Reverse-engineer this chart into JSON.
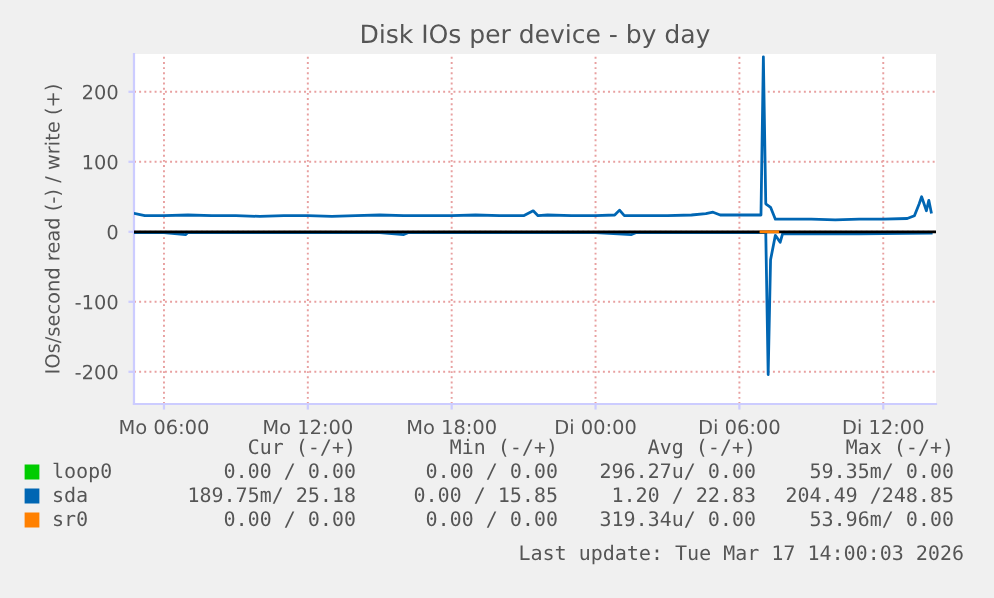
{
  "chart_data": {
    "type": "line",
    "title": "Disk IOs per device - by day",
    "ylabel": "IOs/second read (-) / write (+)",
    "xlim": [
      "2026-03-16T04:45",
      "2026-03-17T14:12"
    ],
    "xticks": [
      {
        "value": "2026-03-16T06:00",
        "label": "Mo 06:00"
      },
      {
        "value": "2026-03-16T12:00",
        "label": "Mo 12:00"
      },
      {
        "value": "2026-03-16T18:00",
        "label": "Mo 18:00"
      },
      {
        "value": "2026-03-17T00:00",
        "label": "Di 00:00"
      },
      {
        "value": "2026-03-17T06:00",
        "label": "Di 06:00"
      },
      {
        "value": "2026-03-17T12:00",
        "label": "Di 12:00"
      }
    ],
    "ylim": [
      -246,
      254
    ],
    "yticks": [
      -200,
      -100,
      0,
      100,
      200
    ],
    "grid": true,
    "legend": "bottom",
    "ref_lines": [
      {
        "axis": "y",
        "value": 0,
        "color": "#000000"
      }
    ],
    "series": [
      {
        "name": "loop0",
        "color": "#00cc00"
      },
      {
        "name": "sda",
        "color": "#0066b3",
        "x": [
          "2026-03-16T04:48",
          "2026-03-16T05:12",
          "2026-03-16T06:00",
          "2026-03-16T07:00",
          "2026-03-16T08:00",
          "2026-03-16T09:00",
          "2026-03-16T10:00",
          "2026-03-16T11:00",
          "2026-03-16T12:00",
          "2026-03-16T13:00",
          "2026-03-16T14:00",
          "2026-03-16T15:00",
          "2026-03-16T16:00",
          "2026-03-16T17:00",
          "2026-03-16T18:00",
          "2026-03-16T19:00",
          "2026-03-16T20:00",
          "2026-03-16T21:00",
          "2026-03-16T21:24",
          "2026-03-16T21:36",
          "2026-03-16T22:00",
          "2026-03-16T23:00",
          "2026-03-17T00:00",
          "2026-03-17T00:48",
          "2026-03-17T01:00",
          "2026-03-17T01:12",
          "2026-03-17T02:00",
          "2026-03-17T03:00",
          "2026-03-17T04:00",
          "2026-03-17T04:36",
          "2026-03-17T04:54",
          "2026-03-17T05:12",
          "2026-03-17T06:00",
          "2026-03-17T06:48",
          "2026-03-17T06:54",
          "2026-03-17T07:00",
          "2026-03-17T07:06",
          "2026-03-17T07:18",
          "2026-03-17T07:30",
          "2026-03-17T08:00",
          "2026-03-17T09:00",
          "2026-03-17T10:00",
          "2026-03-17T11:00",
          "2026-03-17T12:00",
          "2026-03-17T13:00",
          "2026-03-17T13:18",
          "2026-03-17T13:30",
          "2026-03-17T13:36",
          "2026-03-17T13:48",
          "2026-03-17T13:54",
          "2026-03-17T14:00"
        ],
        "values": [
          26,
          23,
          23,
          24,
          23,
          23,
          22,
          23,
          23,
          22,
          23,
          24,
          23,
          23,
          23,
          24,
          23,
          23,
          30,
          23,
          24,
          23,
          23,
          24,
          31,
          23,
          23,
          23,
          24,
          26,
          28,
          24,
          24,
          24,
          24,
          250,
          40,
          35,
          18,
          18,
          18,
          17,
          18,
          18,
          19,
          23,
          40,
          50,
          30,
          45,
          28
        ]
      },
      {
        "color": "#0066b3",
        "x": [
          "2026-03-16T04:48",
          "2026-03-16T06:00",
          "2026-03-16T06:54",
          "2026-03-16T07:00",
          "2026-03-16T15:00",
          "2026-03-16T16:00",
          "2026-03-16T16:12",
          "2026-03-16T22:00",
          "2026-03-17T00:00",
          "2026-03-17T01:30",
          "2026-03-17T01:42",
          "2026-03-17T06:48",
          "2026-03-17T07:06",
          "2026-03-17T07:12",
          "2026-03-17T07:18",
          "2026-03-17T07:30",
          "2026-03-17T07:42",
          "2026-03-17T07:48",
          "2026-03-17T09:00",
          "2026-03-17T11:00",
          "2026-03-17T14:00"
        ],
        "values": [
          -1,
          -1,
          -4,
          -1,
          -1,
          -4,
          -1,
          -1,
          -1,
          -4,
          -1,
          -1,
          -1,
          -204,
          -40,
          -5,
          -15,
          -3,
          -3,
          -3,
          -2
        ]
      },
      {
        "name": "sr0",
        "color": "#ff8000",
        "x": [
          "2026-03-17T06:54",
          "2026-03-17T07:36"
        ],
        "values": [
          0,
          0
        ]
      }
    ],
    "annotations": [
      "Cur (-/+)",
      "Min (-/+)",
      "Avg (-/+)",
      "Max (-/+)",
      "0.00 / 0.00",
      "0.00 / 0.00",
      "296.27u/ 0.00",
      "59.35m/ 0.00",
      "189.75m/ 25.18",
      "0.00 / 15.85",
      "1.20 / 22.83",
      "204.49 /248.85",
      "0.00 / 0.00",
      "0.00 / 0.00",
      "319.34u/ 0.00",
      "53.96m/ 0.00",
      "Last update: Tue Mar 17 14:00:03 2026"
    ]
  }
}
